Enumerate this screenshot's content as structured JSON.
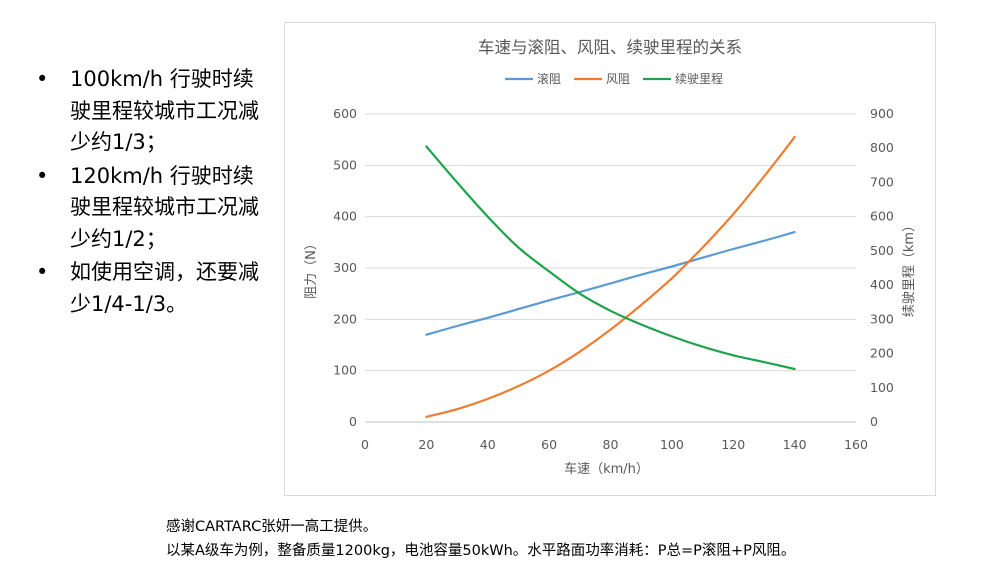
{
  "bullets": [
    "100km/h 行驶时续驶里程较城市工况减少约1/3；",
    "120km/h 行驶时续驶里程较城市工况减少约1/2；",
    "如使用空调，还要减少1/4-1/3。"
  ],
  "bullet_symbol": "•",
  "caption": {
    "line1": "感谢CARTARC张妍一高工提供。",
    "line2": "以某A级车为例，整备质量1200kg，电池容量50kWh。水平路面功率消耗：P总=P滚阻+P风阻。"
  },
  "chart_data": {
    "type": "line",
    "title": "车速与滚阻、风阻、续驶里程的关系",
    "xlabel": "车速（km/h）",
    "ylabel": "阻力（N）",
    "y2label": "续驶里程（km）",
    "xlim": [
      0,
      160
    ],
    "ylim": [
      0,
      600
    ],
    "y2lim": [
      0,
      900
    ],
    "xticks": [
      0,
      20,
      40,
      60,
      80,
      100,
      120,
      140,
      160
    ],
    "yticks": [
      0,
      100,
      200,
      300,
      400,
      500,
      600
    ],
    "y2ticks": [
      0,
      100,
      200,
      300,
      400,
      500,
      600,
      700,
      800,
      900
    ],
    "grid": "horizontal",
    "legend_position": "top",
    "x": [
      20,
      30,
      40,
      50,
      60,
      70,
      80,
      90,
      100,
      110,
      120,
      130,
      140
    ],
    "series": [
      {
        "name": "滚阻",
        "axis": "left",
        "color": "#5b9bd5",
        "values": [
          170,
          187,
          203,
          220,
          237,
          253,
          270,
          287,
          303,
          320,
          337,
          353,
          370
        ]
      },
      {
        "name": "风阻",
        "axis": "left",
        "color": "#ed7d31",
        "values": [
          10,
          25,
          45,
          70,
          100,
          137,
          180,
          228,
          280,
          340,
          405,
          478,
          555
        ]
      },
      {
        "name": "续驶里程",
        "axis": "right",
        "color": "#1ea34a",
        "values": [
          805,
          700,
          600,
          510,
          440,
          375,
          325,
          285,
          250,
          220,
          195,
          175,
          155
        ]
      }
    ]
  }
}
